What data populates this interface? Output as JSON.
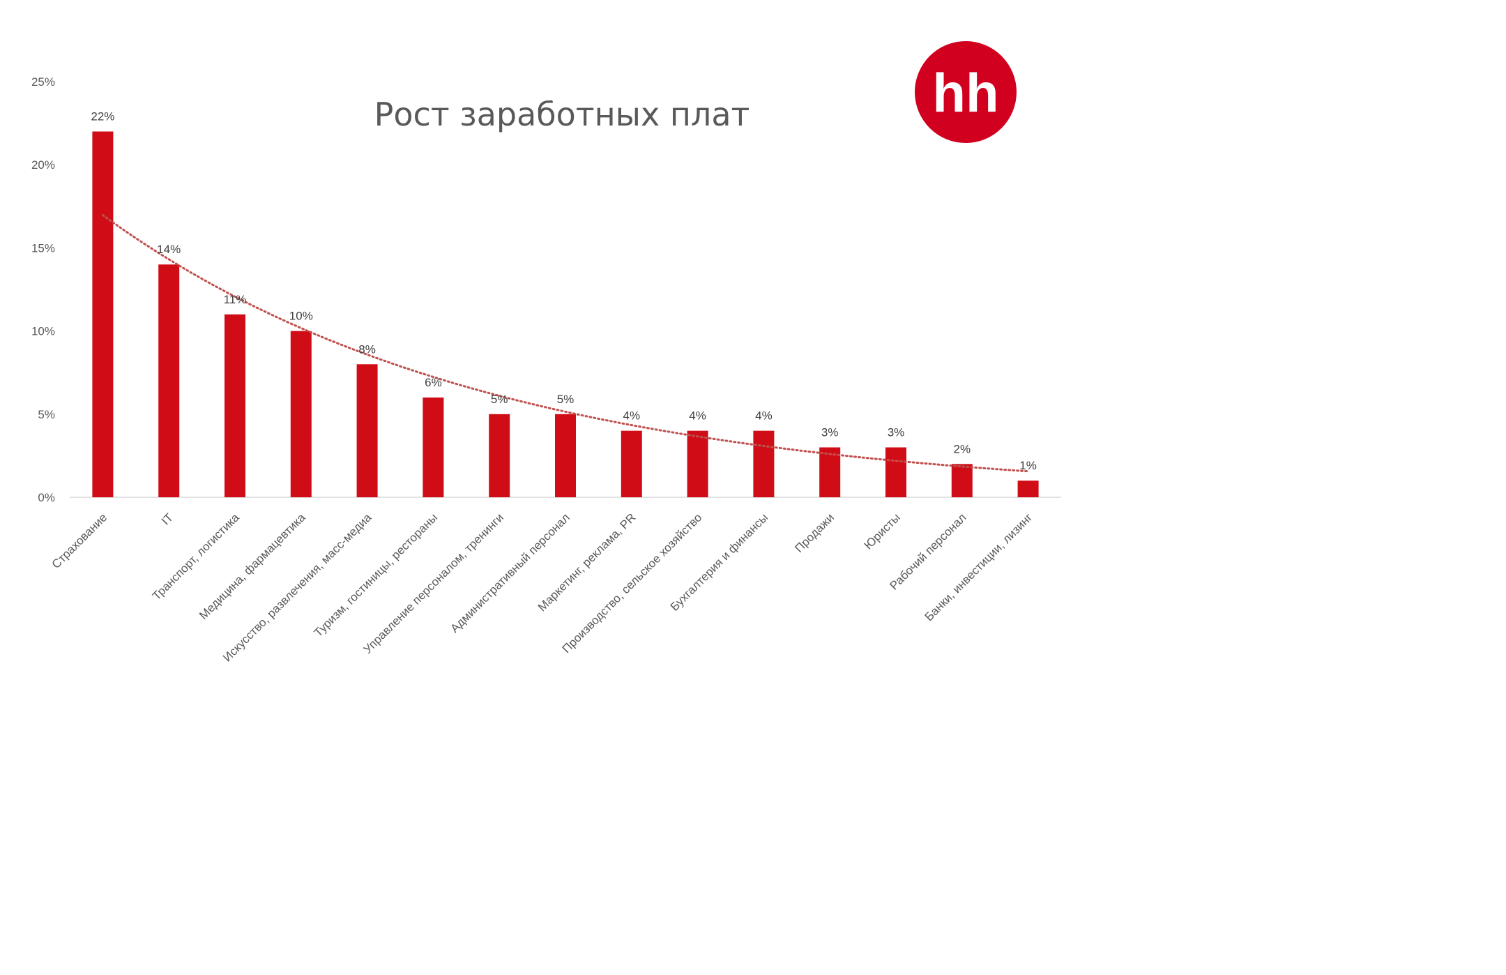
{
  "chart_data": {
    "type": "bar",
    "title": "Рост заработных плат",
    "categories": [
      "Страхование",
      "IT",
      "Транспорт, логистика",
      "Медицина, фармацевтика",
      "Искусство, развлечения, масс-медиа",
      "Туризм, гостиницы, рестораны",
      "Управление персоналом, тренинги",
      "Административный персонал",
      "Маркетинг, реклама, PR",
      "Производство, сельское хозяйство",
      "Бухгалтерия и финансы",
      "Продажи",
      "Юристы",
      "Рабочий персонал",
      "Банки, инвестиции, лизинг"
    ],
    "values": [
      22,
      14,
      11,
      10,
      8,
      6,
      5,
      5,
      4,
      4,
      4,
      3,
      3,
      2,
      1
    ],
    "data_labels": [
      "22%",
      "14%",
      "11%",
      "10%",
      "8%",
      "6%",
      "5%",
      "5%",
      "4%",
      "4%",
      "4%",
      "3%",
      "3%",
      "2%",
      "1%"
    ],
    "y_ticks": [
      "0%",
      "5%",
      "10%",
      "15%",
      "20%",
      "25%"
    ],
    "ylim": [
      0,
      25
    ],
    "trendline": {
      "type": "exponential",
      "style": "dotted",
      "color": "#c0504d"
    },
    "xlabel": "",
    "ylabel": "",
    "grid": false,
    "legend": "none"
  },
  "logo": {
    "text": "hh",
    "color": "#d1001f"
  },
  "colors": {
    "bar": "#d00c16",
    "axis": "#d9d9d9",
    "trend": "#c0504d"
  }
}
